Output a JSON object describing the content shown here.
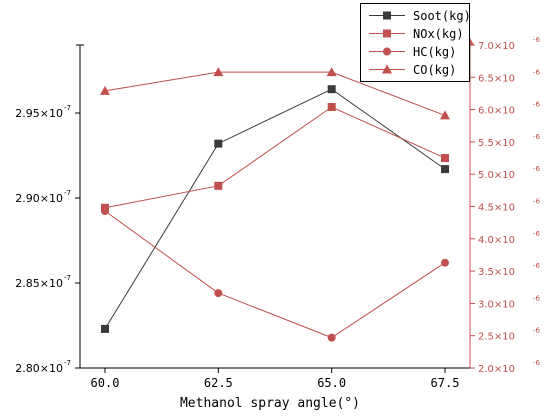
{
  "chart_data": {
    "type": "line",
    "xlabel": "Methanol spray angle(°)",
    "categories": [
      "60.0",
      "62.5",
      "65.0",
      "67.5"
    ],
    "left_axis": {
      "ylim": [
        2.8e-07,
        2.99e-07
      ],
      "ticks": [
        2.8e-07,
        2.85e-07,
        2.9e-07,
        2.95e-07
      ],
      "tick_labels": [
        "2.80×10",
        "2.85×10",
        "2.90×10",
        "2.95×10"
      ],
      "tick_exponent": "-7",
      "color": "#000000"
    },
    "right_axis": {
      "ylim": [
        2e-06,
        7e-06
      ],
      "ticks": [
        2e-06,
        2.5e-06,
        3e-06,
        3.5e-06,
        4e-06,
        4.5e-06,
        5e-06,
        5.5e-06,
        6e-06,
        6.5e-06,
        7e-06
      ],
      "tick_labels": [
        "2.0×10",
        "2.5×10",
        "3.0×10",
        "3.5×10",
        "4.0×10",
        "4.5×10",
        "5.0×10",
        "5.5×10",
        "6.0×10",
        "6.5×10",
        "7.0×10"
      ],
      "tick_exponent": "-6",
      "color": "#c0504d"
    },
    "series": [
      {
        "name": "Soot(kg)",
        "axis": "left",
        "marker": "square",
        "color": "#3a3a3a",
        "values": [
          2.823e-07,
          2.932e-07,
          2.964e-07,
          2.917e-07
        ]
      },
      {
        "name": "NOx(kg)",
        "axis": "right",
        "marker": "square",
        "color": "#c0504d",
        "values": [
          4.48e-06,
          4.82e-06,
          6.04e-06,
          5.25e-06
        ]
      },
      {
        "name": "HC(kg)",
        "axis": "right",
        "marker": "circle",
        "color": "#c0504d",
        "values": [
          4.43e-06,
          3.16e-06,
          2.47e-06,
          3.63e-06
        ]
      },
      {
        "name": "CO(kg)",
        "axis": "right",
        "marker": "triangle",
        "color": "#c0504d",
        "values": [
          6.29e-06,
          6.58e-06,
          6.58e-06,
          5.91e-06
        ]
      }
    ],
    "legend": {
      "placement": "top-right",
      "entries": [
        "Soot(kg)",
        "NOx(kg)",
        "HC(kg)",
        "CO(kg)"
      ]
    },
    "grid": false
  }
}
